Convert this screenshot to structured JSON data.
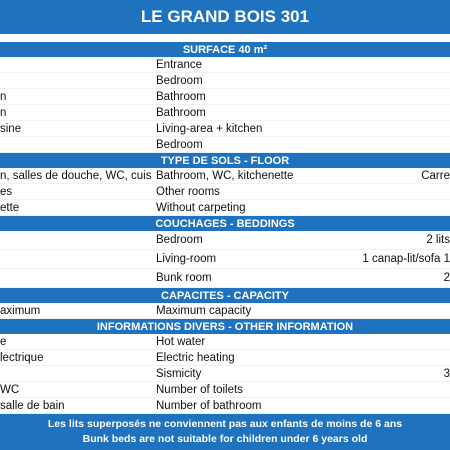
{
  "title": "LE GRAND BOIS 301",
  "sections": [
    {
      "header": "SURFACE 40 m²",
      "rows": [
        {
          "middle": "Entrance"
        },
        {
          "middle": "Bedroom"
        },
        {
          "left": "n",
          "middle": "Bathroom"
        },
        {
          "left": "n",
          "middle": "Bathroom"
        },
        {
          "left": "sine",
          "middle": "Living-area + kitchen"
        },
        {
          "middle": "Bedroom"
        }
      ]
    },
    {
      "header": "TYPE DE SOLS - FLOOR",
      "rows": [
        {
          "left": "n, salles de douche, WC, cuisi",
          "middle": "Bathroom, WC, kitchenette",
          "right": "Carre"
        },
        {
          "left": "es",
          "middle": "Other rooms"
        },
        {
          "left": "ette",
          "middle": "Without carpeting"
        }
      ]
    },
    {
      "header": "COUCHAGES - BEDDINGS",
      "rows": [
        {
          "middle": "Bedroom",
          "right": "2 lits"
        },
        {
          "middle": "Living-room",
          "right": "1 canap-lit/sofa 1"
        },
        {
          "middle": "Bunk room",
          "right": "2"
        }
      ]
    },
    {
      "header": "CAPACITES - CAPACITY",
      "rows": [
        {
          "left": "aximum",
          "middle": "Maximum capacity"
        }
      ]
    },
    {
      "header": "INFORMATIONS DIVERS - OTHER INFORMATION",
      "rows": [
        {
          "left": "e",
          "middle": "Hot water"
        },
        {
          "left": "lectrique",
          "middle": "Electric heating"
        },
        {
          "middle": "Sismicity",
          "right": "3"
        },
        {
          "left": "WC",
          "middle": "Number of toilets"
        },
        {
          "left": "salle de bain",
          "middle": "Number of bathroom"
        }
      ]
    }
  ],
  "footer": [
    "Les lits superposés ne conviennent pas aux enfants de moins de 6 ans",
    "Bunk beds are not suitable for children under 6 years old"
  ]
}
